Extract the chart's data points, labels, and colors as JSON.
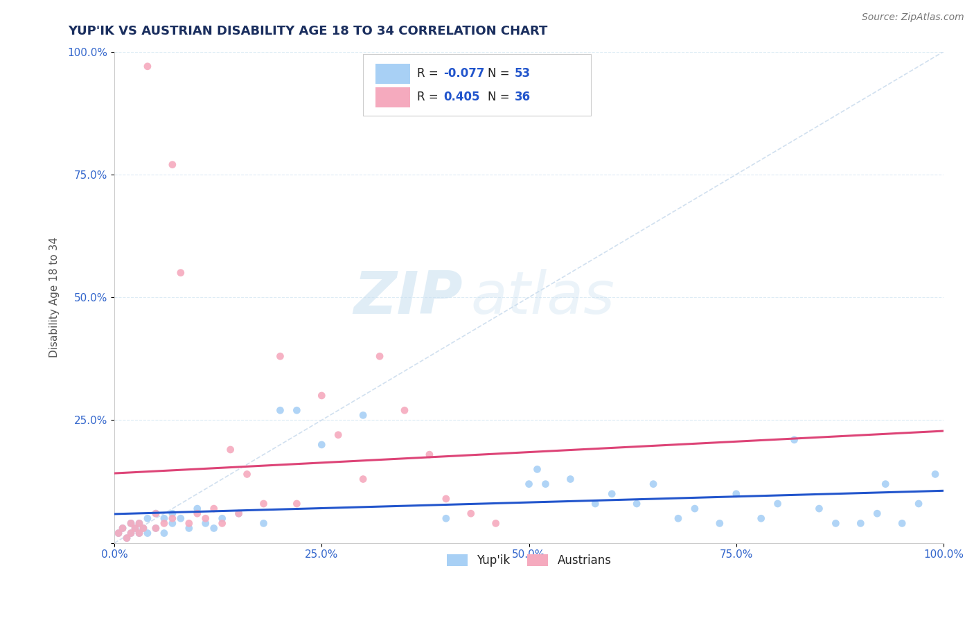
{
  "title": "YUP'IK VS AUSTRIAN DISABILITY AGE 18 TO 34 CORRELATION CHART",
  "source": "Source: ZipAtlas.com",
  "ylabel": "Disability Age 18 to 34",
  "watermark_zip": "ZIP",
  "watermark_atlas": "atlas",
  "legend_label1": "Yup'ik",
  "legend_label2": "Austrians",
  "R1": -0.077,
  "N1": 53,
  "R2": 0.405,
  "N2": 36,
  "color1": "#A8D0F5",
  "color2": "#F5AABE",
  "line_color1": "#2255CC",
  "line_color2": "#DD4477",
  "ref_line_color": "#CCDDEE",
  "background": "#FFFFFF",
  "xlim": [
    0,
    1
  ],
  "ylim": [
    0,
    1
  ],
  "xticks": [
    0,
    0.25,
    0.5,
    0.75,
    1.0
  ],
  "yticks": [
    0,
    0.25,
    0.5,
    0.75,
    1.0
  ],
  "xticklabels": [
    "0.0%",
    "25.0%",
    "50.0%",
    "75.0%",
    "100.0%"
  ],
  "yticklabels": [
    "",
    "25.0%",
    "50.0%",
    "75.0%",
    "100.0%"
  ],
  "yup_ik_x": [
    0.005,
    0.01,
    0.015,
    0.02,
    0.02,
    0.025,
    0.03,
    0.03,
    0.035,
    0.04,
    0.04,
    0.05,
    0.05,
    0.06,
    0.06,
    0.07,
    0.07,
    0.08,
    0.09,
    0.1,
    0.11,
    0.12,
    0.13,
    0.15,
    0.18,
    0.2,
    0.22,
    0.25,
    0.3,
    0.4,
    0.5,
    0.51,
    0.52,
    0.55,
    0.58,
    0.6,
    0.63,
    0.65,
    0.68,
    0.7,
    0.73,
    0.75,
    0.78,
    0.8,
    0.82,
    0.85,
    0.87,
    0.9,
    0.92,
    0.93,
    0.95,
    0.97,
    0.99
  ],
  "yup_ik_y": [
    0.02,
    0.03,
    0.01,
    0.04,
    0.02,
    0.03,
    0.02,
    0.04,
    0.03,
    0.05,
    0.02,
    0.06,
    0.03,
    0.05,
    0.02,
    0.04,
    0.06,
    0.05,
    0.03,
    0.07,
    0.04,
    0.03,
    0.05,
    0.06,
    0.04,
    0.27,
    0.27,
    0.2,
    0.26,
    0.05,
    0.12,
    0.15,
    0.12,
    0.13,
    0.08,
    0.1,
    0.08,
    0.12,
    0.05,
    0.07,
    0.04,
    0.1,
    0.05,
    0.08,
    0.21,
    0.07,
    0.04,
    0.04,
    0.06,
    0.12,
    0.04,
    0.08,
    0.14
  ],
  "austrians_x": [
    0.005,
    0.01,
    0.015,
    0.02,
    0.02,
    0.025,
    0.03,
    0.03,
    0.035,
    0.04,
    0.05,
    0.05,
    0.06,
    0.07,
    0.07,
    0.08,
    0.09,
    0.1,
    0.11,
    0.12,
    0.13,
    0.14,
    0.15,
    0.16,
    0.18,
    0.2,
    0.22,
    0.25,
    0.27,
    0.3,
    0.32,
    0.35,
    0.38,
    0.4,
    0.43,
    0.46
  ],
  "austrians_y": [
    0.02,
    0.03,
    0.01,
    0.04,
    0.02,
    0.03,
    0.04,
    0.02,
    0.03,
    0.97,
    0.06,
    0.03,
    0.04,
    0.05,
    0.77,
    0.55,
    0.04,
    0.06,
    0.05,
    0.07,
    0.04,
    0.19,
    0.06,
    0.14,
    0.08,
    0.38,
    0.08,
    0.3,
    0.22,
    0.13,
    0.38,
    0.27,
    0.18,
    0.09,
    0.06,
    0.04
  ],
  "title_color": "#1a2e5e",
  "tick_color": "#3366CC",
  "label_color": "#555555",
  "grid_color": "#DDECF5",
  "title_fontsize": 13,
  "tick_fontsize": 11,
  "label_fontsize": 11,
  "source_fontsize": 10
}
